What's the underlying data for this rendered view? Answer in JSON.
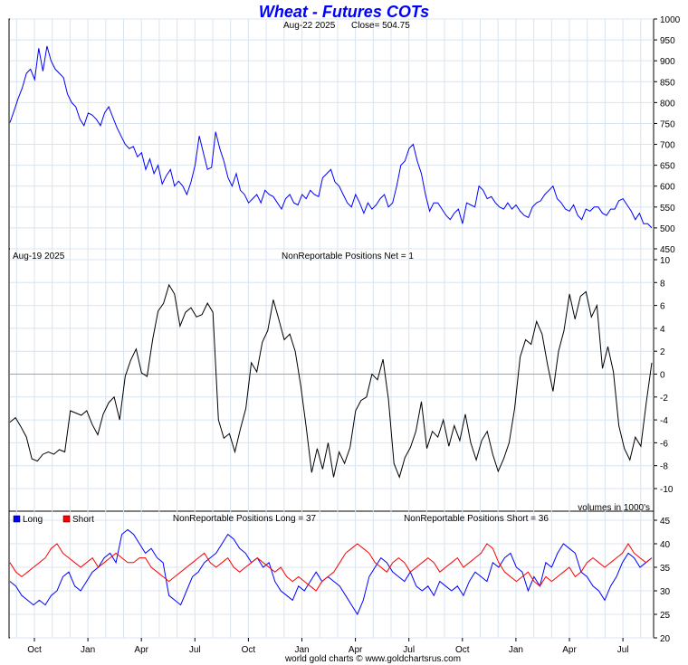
{
  "title": "Wheat - Futures COTs",
  "footer": "world gold charts © www.goldchartsrus.com",
  "x_axis_labels": [
    "Oct",
    "Jan",
    "Apr",
    "Jul",
    "Oct",
    "Jan",
    "Apr",
    "Jul",
    "Oct",
    "Jan",
    "Apr",
    "Jul"
  ],
  "colors": {
    "price": "#0000ff",
    "net": "#000000",
    "long": "#0000ff",
    "short": "#ff0000",
    "title": "#0000ff",
    "grid": "#d8e4f0",
    "zero_line": "#a0a0a0"
  },
  "panels": {
    "price": {
      "date_label": "Aug-22  2025",
      "close_label": "Close= 504.75"
    },
    "net": {
      "date_label": "Aug-19  2025",
      "net_label": "NonReportable Positions Net = 1",
      "volume_note": "volumes in 1000's"
    },
    "longshort": {
      "legend_long": "Long",
      "legend_short": "Short",
      "long_label": "NonReportable Positions Long = 37",
      "short_label": "NonReportable Positions Short = 36"
    }
  },
  "chart_data": [
    {
      "type": "line",
      "title": "Wheat - Futures COTs",
      "ylim": [
        450,
        1000
      ],
      "y_ticks": [
        450,
        500,
        550,
        600,
        650,
        700,
        750,
        800,
        850,
        900,
        950,
        1000
      ],
      "series": [
        {
          "name": "",
          "values": [
            752,
            780,
            810,
            835,
            870,
            880,
            855,
            930,
            875,
            935,
            900,
            880,
            870,
            860,
            820,
            800,
            790,
            760,
            745,
            775,
            770,
            760,
            745,
            775,
            790,
            765,
            740,
            720,
            700,
            690,
            695,
            670,
            680,
            640,
            665,
            630,
            650,
            605,
            625,
            640,
            600,
            612,
            600,
            580,
            610,
            650,
            720,
            680,
            640,
            645,
            730,
            690,
            660,
            620,
            600,
            630,
            590,
            580,
            560,
            570,
            580,
            560,
            590,
            580,
            575,
            560,
            545,
            570,
            580,
            560,
            555,
            580,
            570,
            590,
            580,
            575,
            620,
            630,
            640,
            610,
            600,
            580,
            560,
            550,
            580,
            560,
            535,
            560,
            545,
            555,
            570,
            580,
            550,
            560,
            600,
            650,
            660,
            690,
            700,
            660,
            630,
            580,
            540,
            560,
            560,
            545,
            530,
            520,
            535,
            545,
            510,
            560,
            555,
            550,
            600,
            590,
            570,
            575,
            560,
            550,
            545,
            560,
            545,
            555,
            540,
            530,
            525,
            550,
            560,
            565,
            580,
            590,
            600,
            570,
            560,
            545,
            540,
            555,
            530,
            520,
            545,
            540,
            550,
            550,
            535,
            530,
            545,
            545,
            565,
            570,
            555,
            540,
            520,
            535,
            510,
            510,
            500
          ]
        }
      ]
    },
    {
      "type": "line",
      "title": "NonReportable Positions Net = 1",
      "ylim": [
        -10,
        10
      ],
      "y_ticks": [
        -10,
        -8,
        -6,
        -4,
        -2,
        0,
        2,
        4,
        6,
        8,
        10
      ],
      "series": [
        {
          "name": "",
          "values": [
            -4.2,
            -3.8,
            -4.6,
            -5.5,
            -7.4,
            -7.6,
            -7.0,
            -6.8,
            -7.0,
            -6.6,
            -6.8,
            -3.2,
            -3.4,
            -3.6,
            -3.2,
            -4.4,
            -5.3,
            -3.5,
            -2.5,
            -2.0,
            -4.0,
            -0.2,
            1.2,
            2.2,
            0.1,
            -0.2,
            3.0,
            5.5,
            6.2,
            7.8,
            7.0,
            4.2,
            5.4,
            5.8,
            5.0,
            5.2,
            6.2,
            5.4,
            -4.0,
            -5.6,
            -5.2,
            -6.8,
            -4.8,
            -3.0,
            1.0,
            0.2,
            2.8,
            3.8,
            6.5,
            4.8,
            3.0,
            3.5,
            2.0,
            -1.0,
            -4.6,
            -8.6,
            -6.5,
            -8.3,
            -6.0,
            -9.0,
            -6.8,
            -7.8,
            -6.4,
            -3.2,
            -2.3,
            -2.0,
            0.0,
            -0.5,
            1.3,
            -2.2,
            -7.8,
            -9.0,
            -7.3,
            -6.4,
            -5.0,
            -2.4,
            -6.5,
            -5.0,
            -5.5,
            -4.0,
            -6.3,
            -4.5,
            -5.8,
            -3.5,
            -6.0,
            -7.5,
            -5.8,
            -5.0,
            -7.0,
            -8.5,
            -7.4,
            -6.0,
            -3.0,
            1.5,
            3.0,
            2.6,
            4.6,
            3.5,
            0.8,
            -1.5,
            2.0,
            3.8,
            7.0,
            4.8,
            6.8,
            7.2,
            5.0,
            6.0,
            0.5,
            2.4,
            0.2,
            -4.5,
            -6.5,
            -7.5,
            -5.5,
            -6.3,
            -2.5,
            1.0
          ]
        }
      ]
    },
    {
      "type": "line",
      "title": "NonReportable Positions",
      "ylim": [
        20,
        45
      ],
      "y_ticks": [
        20,
        25,
        30,
        35,
        40,
        45
      ],
      "series": [
        {
          "name": "Long",
          "values": [
            32,
            31,
            29,
            28,
            27,
            28,
            27,
            29,
            30,
            33,
            34,
            31,
            30,
            32,
            34,
            35,
            37,
            38,
            36,
            42,
            43,
            42,
            40,
            38,
            39,
            37,
            36,
            29,
            28,
            27,
            30,
            33,
            34,
            36,
            37,
            38,
            40,
            42,
            41,
            39,
            38,
            36,
            37,
            35,
            36,
            32,
            30,
            29,
            28,
            31,
            30,
            32,
            34,
            32,
            33,
            32,
            31,
            29,
            27,
            25,
            28,
            33,
            35,
            37,
            36,
            34,
            33,
            32,
            34,
            31,
            30,
            31,
            29,
            32,
            31,
            30,
            31,
            29,
            32,
            34,
            33,
            32,
            36,
            35,
            37,
            38,
            35,
            34,
            30,
            33,
            31,
            36,
            35,
            38,
            40,
            39,
            38,
            34,
            33,
            31,
            30,
            28,
            31,
            33,
            36,
            38,
            37,
            35,
            36,
            37
          ]
        },
        {
          "name": "Short",
          "values": [
            36,
            34,
            33,
            34,
            35,
            36,
            37,
            39,
            40,
            38,
            37,
            36,
            35,
            36,
            37,
            35,
            36,
            37,
            38,
            37,
            36,
            36,
            37,
            37,
            35,
            34,
            33,
            32,
            33,
            34,
            35,
            36,
            37,
            38,
            36,
            35,
            36,
            37,
            35,
            34,
            35,
            36,
            37,
            36,
            35,
            34,
            35,
            33,
            32,
            33,
            32,
            31,
            30,
            32,
            33,
            34,
            36,
            38,
            39,
            40,
            39,
            38,
            36,
            35,
            34,
            36,
            37,
            36,
            34,
            35,
            36,
            37,
            36,
            34,
            35,
            36,
            37,
            35,
            36,
            37,
            38,
            40,
            39,
            36,
            34,
            33,
            32,
            33,
            34,
            32,
            31,
            33,
            32,
            33,
            34,
            35,
            33,
            34,
            36,
            37,
            36,
            35,
            36,
            37,
            38,
            40,
            38,
            37,
            36,
            37
          ]
        }
      ]
    }
  ]
}
